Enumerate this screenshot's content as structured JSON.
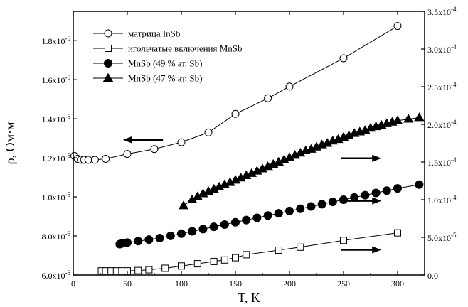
{
  "chart_data": {
    "type": "scatter",
    "xlabel": "T, K",
    "ylabel_left": "ρ, Ом·м",
    "ylabel_right": "",
    "xlim": [
      0,
      325
    ],
    "ylim_left": [
      6e-06,
      1.95e-05
    ],
    "ylim_right": [
      0,
      0.00035
    ],
    "x_ticks": [
      {
        "value": 0,
        "label": "0"
      },
      {
        "value": 50,
        "label": "50"
      },
      {
        "value": 100,
        "label": "100"
      },
      {
        "value": 150,
        "label": "150"
      },
      {
        "value": 200,
        "label": "200"
      },
      {
        "value": 250,
        "label": "250"
      },
      {
        "value": 300,
        "label": "300"
      }
    ],
    "y_left_ticks": [
      {
        "value": 6e-06,
        "mant": "6.0x10",
        "exp": "-6"
      },
      {
        "value": 8e-06,
        "mant": "8.0x10",
        "exp": "-6"
      },
      {
        "value": 1e-05,
        "mant": "1.0x10",
        "exp": "-5"
      },
      {
        "value": 1.2e-05,
        "mant": "1.2x10",
        "exp": "-5"
      },
      {
        "value": 1.4e-05,
        "mant": "1.4x10",
        "exp": "-5"
      },
      {
        "value": 1.6e-05,
        "mant": "1.6x10",
        "exp": "-5"
      },
      {
        "value": 1.8e-05,
        "mant": "1.8x10",
        "exp": "-5"
      }
    ],
    "y_right_ticks": [
      {
        "value": 0,
        "mant": "0.0",
        "exp": ""
      },
      {
        "value": 5e-05,
        "mant": "5.0x10",
        "exp": "-5"
      },
      {
        "value": 0.0001,
        "mant": "1.0x10",
        "exp": "-4"
      },
      {
        "value": 0.00015,
        "mant": "1.5x10",
        "exp": "-4"
      },
      {
        "value": 0.0002,
        "mant": "2.0x10",
        "exp": "-4"
      },
      {
        "value": 0.00025,
        "mant": "2.5x10",
        "exp": "-4"
      },
      {
        "value": 0.0003,
        "mant": "3.0x10",
        "exp": "-4"
      },
      {
        "value": 0.00035,
        "mant": "3.5x10",
        "exp": "-4"
      }
    ],
    "legend_position": "top-left",
    "series": [
      {
        "name": "матрица InSb",
        "axis": "left",
        "marker": "circle-open",
        "x": [
          1,
          4,
          7,
          10,
          14,
          20,
          30,
          50,
          75,
          100,
          125,
          150,
          180,
          200,
          250,
          300
        ],
        "y": [
          1.21e-05,
          1.195e-05,
          1.19e-05,
          1.19e-05,
          1.19e-05,
          1.19e-05,
          1.195e-05,
          1.22e-05,
          1.245e-05,
          1.28e-05,
          1.33e-05,
          1.425e-05,
          1.505e-05,
          1.565e-05,
          1.71e-05,
          1.875e-05
        ]
      },
      {
        "name": "игольчатые включения MnSb",
        "axis": "right",
        "marker": "square-open",
        "x": [
          26,
          30,
          35,
          40,
          45,
          50,
          60,
          70,
          85,
          100,
          115,
          130,
          140,
          150,
          160,
          190,
          210,
          250,
          300
        ],
        "y": [
          5.5e-06,
          5.5e-06,
          5.5e-06,
          5.5e-06,
          5.5e-06,
          5.5e-06,
          6e-06,
          7e-06,
          9e-06,
          1.2e-05,
          1.5e-05,
          1.8e-05,
          2e-05,
          2.3e-05,
          2.7e-05,
          3.3e-05,
          3.7e-05,
          4.6e-05,
          5.6e-05
        ]
      },
      {
        "name": "MnSb (49 % ат. Sb)",
        "axis": "right",
        "marker": "circle-filled",
        "x": [
          43,
          45,
          50,
          60,
          70,
          80,
          90,
          100,
          110,
          120,
          130,
          140,
          150,
          160,
          170,
          180,
          190,
          200,
          210,
          220,
          230,
          240,
          250,
          260,
          270,
          280,
          290,
          300,
          320
        ],
        "y": [
          4.1e-05,
          4.2e-05,
          4.3e-05,
          4.5e-05,
          4.7e-05,
          4.9e-05,
          5.2e-05,
          5.5e-05,
          5.8e-05,
          6.1e-05,
          6.4e-05,
          6.7e-05,
          7e-05,
          7.3e-05,
          7.6e-05,
          7.9e-05,
          8.2e-05,
          8.5e-05,
          8.8e-05,
          9.1e-05,
          9.4e-05,
          9.7e-05,
          0.0001,
          0.000103,
          0.000106,
          0.000109,
          0.000112,
          0.000115,
          0.00012
        ]
      },
      {
        "name": "MnSb (47 % ат. Sb)",
        "axis": "right",
        "marker": "triangle-filled",
        "x": [
          102,
          110,
          115,
          120,
          125,
          130,
          135,
          140,
          145,
          150,
          155,
          160,
          165,
          170,
          175,
          180,
          185,
          190,
          195,
          200,
          205,
          210,
          215,
          220,
          225,
          230,
          235,
          240,
          245,
          250,
          255,
          260,
          265,
          270,
          275,
          280,
          285,
          290,
          295,
          300,
          310,
          320
        ],
        "y": [
          9.2e-05,
          0.0001,
          0.000104,
          0.000108,
          0.000111,
          0.000114,
          0.000117,
          0.00012,
          0.000123,
          0.000126,
          0.000129,
          0.000132,
          0.000135,
          0.000138,
          0.000141,
          0.000144,
          0.000147,
          0.00015,
          0.000153,
          0.000156,
          0.000159,
          0.000162,
          0.000165,
          0.000167,
          0.00017,
          0.000173,
          0.000175,
          0.000178,
          0.00018,
          0.000183,
          0.000185,
          0.000188,
          0.00019,
          0.000192,
          0.000195,
          0.000197,
          0.000199,
          0.000201,
          0.000203,
          0.000205,
          0.000207,
          0.000209
        ]
      }
    ],
    "annotations": [
      {
        "type": "arrow",
        "direction": "left",
        "axis_side": "left",
        "x_from": 83,
        "x_to": 46,
        "y": 1.2925e-05
      },
      {
        "type": "arrow",
        "direction": "right",
        "axis_side": "right",
        "x_from": 248,
        "x_to": 285,
        "y": 0.000155
      },
      {
        "type": "arrow",
        "direction": "right",
        "axis_side": "right",
        "x_from": 248,
        "x_to": 285,
        "y": 9.85e-05
      },
      {
        "type": "arrow",
        "direction": "right",
        "axis_side": "right",
        "x_from": 248,
        "x_to": 285,
        "y": 3.35e-05
      }
    ]
  }
}
